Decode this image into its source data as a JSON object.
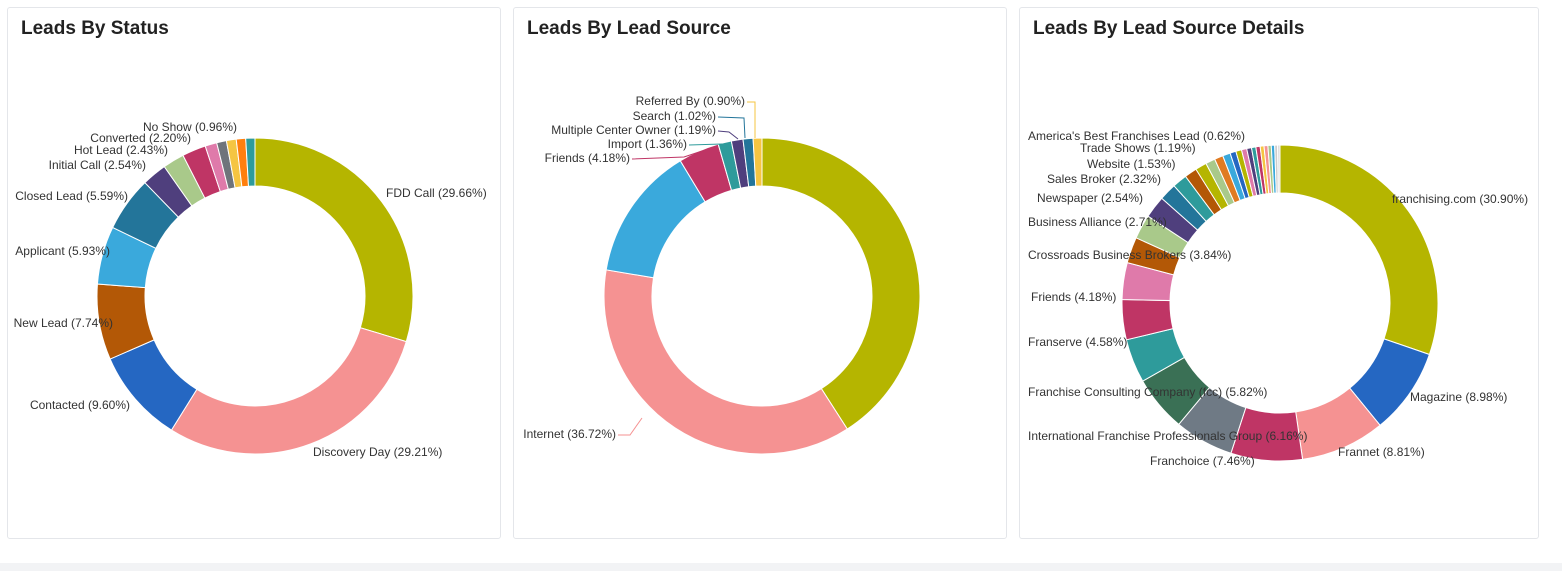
{
  "charts": [
    {
      "title": "Leads By Status",
      "slices": [
        {
          "label": "FDD Call (29.66%)",
          "color": "#b5b500"
        },
        {
          "label": "Discovery Day (29.21%)",
          "color": "#f59292"
        },
        {
          "label": "Contacted (9.60%)",
          "color": "#2567c2"
        },
        {
          "label": "New Lead (7.74%)",
          "color": "#b35806"
        },
        {
          "label": "Applicant (5.93%)",
          "color": "#3aa9dc"
        },
        {
          "label": "Closed Lead (5.59%)",
          "color": "#23759a"
        },
        {
          "label": "Initial Call (2.54%)",
          "color": "#4f3f7d"
        },
        {
          "label": "Converted (2.20%)",
          "color": "#a9c98a"
        },
        {
          "label": "Hot Lead (2.43%)",
          "color": "#bf3565"
        },
        {
          "label": "",
          "color": "#df7aaa"
        },
        {
          "label": "",
          "color": "#6f747b"
        },
        {
          "label": "",
          "color": "#f5c542"
        },
        {
          "label": "No Show (0.96%)",
          "color": "#ff7f0e"
        },
        {
          "label": "",
          "color": "#2e9b9b"
        }
      ]
    },
    {
      "title": "Leads By Lead Source",
      "slices": [
        {
          "label": "",
          "color": "#b5b500"
        },
        {
          "label": "Internet (36.72%)",
          "color": "#f59292"
        },
        {
          "label": "",
          "color": "#3aa9dc"
        },
        {
          "label": "Friends (4.18%)",
          "color": "#bf3565"
        },
        {
          "label": "Import (1.36%)",
          "color": "#2e9b9b"
        },
        {
          "label": "Multiple Center Owner (1.19%)",
          "color": "#4f3f7d"
        },
        {
          "label": "Search (1.02%)",
          "color": "#23759a"
        },
        {
          "label": "Referred By (0.90%)",
          "color": "#f5c542"
        }
      ]
    },
    {
      "title": "Leads By Lead Source Details",
      "slices": [
        {
          "label": "franchising.com (30.90%)",
          "color": "#b5b500"
        },
        {
          "label": "Magazine (8.98%)",
          "color": "#2567c2"
        },
        {
          "label": "Frannet (8.81%)",
          "color": "#f59292"
        },
        {
          "label": "Franchoice (7.46%)",
          "color": "#bf3565"
        },
        {
          "label": "International Franchise Professionals Group (6.16%)",
          "color": "#6f7a85"
        },
        {
          "label": "Franchise Consulting Company (fcc) (5.82%)",
          "color": "#3a7055"
        },
        {
          "label": "Franserve (4.58%)",
          "color": "#2e9b9b"
        },
        {
          "label": "Friends (4.18%)",
          "color": "#bf3565"
        },
        {
          "label": "Crossroads Business Brokers (3.84%)",
          "color": "#df7aaa"
        },
        {
          "label": "Business Alliance (2.71%)",
          "color": "#b35806"
        },
        {
          "label": "Newspaper (2.54%)",
          "color": "#a9c98a"
        },
        {
          "label": "Sales Broker (2.32%)",
          "color": "#4f3f7d"
        },
        {
          "label": "",
          "color": "#23759a"
        },
        {
          "label": "Website (1.53%)",
          "color": "#2e9b9b"
        },
        {
          "label": "",
          "color": "#b35806"
        },
        {
          "label": "Trade Shows (1.19%)",
          "color": "#b5b500"
        },
        {
          "label": "",
          "color": "#a9c98a"
        },
        {
          "label": "",
          "color": "#e07b22"
        },
        {
          "label": "",
          "color": "#3aa9dc"
        },
        {
          "label": "America's Best Franchises Lead (0.62%)",
          "color": "#2567c2"
        },
        {
          "label": "",
          "color": "#b5b500"
        },
        {
          "label": "",
          "color": "#df7aaa"
        },
        {
          "label": "",
          "color": "#4f3f7d"
        },
        {
          "label": "",
          "color": "#2e9b9b"
        },
        {
          "label": "",
          "color": "#bf3565"
        },
        {
          "label": "",
          "color": "#f5c542"
        },
        {
          "label": "",
          "color": "#f59292"
        },
        {
          "label": "",
          "color": "#a9c98a"
        },
        {
          "label": "",
          "color": "#3aa9dc"
        },
        {
          "label": "",
          "color": "#cccccc"
        },
        {
          "label": "",
          "color": "#dddddd"
        }
      ]
    }
  ],
  "chart_data": [
    {
      "type": "pie",
      "title": "Leads By Status",
      "categories": [
        "FDD Call",
        "Discovery Day",
        "Contacted",
        "New Lead",
        "Applicant",
        "Closed Lead",
        "Initial Call",
        "Converted",
        "Hot Lead",
        "(unlabeled)",
        "(unlabeled)",
        "(unlabeled)",
        "No Show",
        "(unlabeled)"
      ],
      "values": [
        29.66,
        29.21,
        9.6,
        7.74,
        5.93,
        5.59,
        2.54,
        2.2,
        2.43,
        1.2,
        1.0,
        1.0,
        0.96,
        0.94
      ],
      "unit": "%"
    },
    {
      "type": "pie",
      "title": "Leads By Lead Source",
      "categories": [
        "(unlabeled)",
        "Internet",
        "(unlabeled)",
        "Friends",
        "Import",
        "Multiple Center Owner",
        "Search",
        "Referred By"
      ],
      "values": [
        40.93,
        36.72,
        13.7,
        4.18,
        1.36,
        1.19,
        1.02,
        0.9
      ],
      "unit": "%"
    },
    {
      "type": "pie",
      "title": "Leads By Lead Source Details",
      "categories": [
        "franchising.com",
        "Magazine",
        "Frannet",
        "Franchoice",
        "International Franchise Professionals Group",
        "Franchise Consulting Company (fcc)",
        "Franserve",
        "Friends",
        "Crossroads Business Brokers",
        "Business Alliance",
        "Newspaper",
        "Sales Broker",
        "(unlabeled)",
        "Website",
        "(unlabeled)",
        "Trade Shows",
        "(unlabeled)",
        "(unlabeled)",
        "(unlabeled)",
        "America's Best Franchises Lead",
        "(unlabeled)",
        "(unlabeled)",
        "(unlabeled)",
        "(unlabeled)",
        "(unlabeled)",
        "(unlabeled)",
        "(unlabeled)",
        "(unlabeled)",
        "(unlabeled)",
        "(unlabeled)",
        "(unlabeled)"
      ],
      "values": [
        30.9,
        8.98,
        8.81,
        7.46,
        6.16,
        5.82,
        4.58,
        4.18,
        3.84,
        2.71,
        2.54,
        2.32,
        1.8,
        1.53,
        1.3,
        1.19,
        1.0,
        0.9,
        0.8,
        0.62,
        0.6,
        0.55,
        0.5,
        0.45,
        0.45,
        0.4,
        0.4,
        0.35,
        0.35,
        0.3,
        0.25
      ],
      "unit": "%"
    }
  ]
}
